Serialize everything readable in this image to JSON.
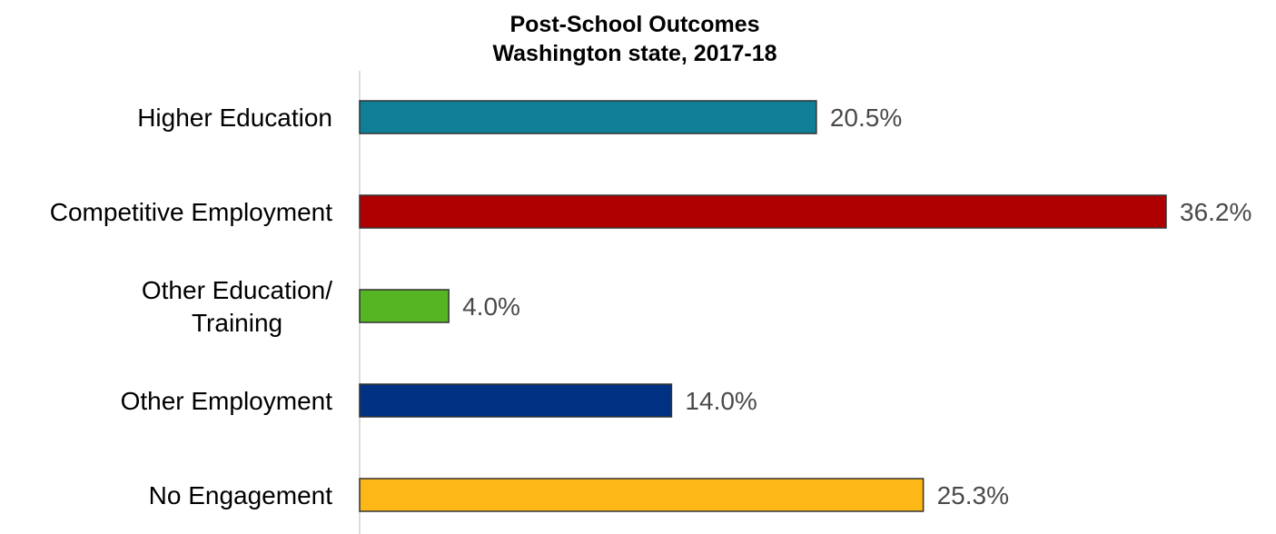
{
  "chart_data": {
    "type": "bar",
    "orientation": "horizontal",
    "title": [
      "Post-School Outcomes",
      "Washington state, 2017-18"
    ],
    "categories": [
      [
        "Higher Education"
      ],
      [
        "Competitive Employment"
      ],
      [
        "Other Education/",
        "Training"
      ],
      [
        "Other Employment"
      ],
      [
        "No Engagement"
      ]
    ],
    "values": [
      20.5,
      36.2,
      4.0,
      14.0,
      25.3
    ],
    "value_labels": [
      "20.5%",
      "36.2%",
      "4.0%",
      "14.0%",
      "25.3%"
    ],
    "colors": [
      "#0E7F96",
      "#AE0000",
      "#55B523",
      "#003183",
      "#FDB716"
    ],
    "grid": false,
    "legend": "none"
  }
}
